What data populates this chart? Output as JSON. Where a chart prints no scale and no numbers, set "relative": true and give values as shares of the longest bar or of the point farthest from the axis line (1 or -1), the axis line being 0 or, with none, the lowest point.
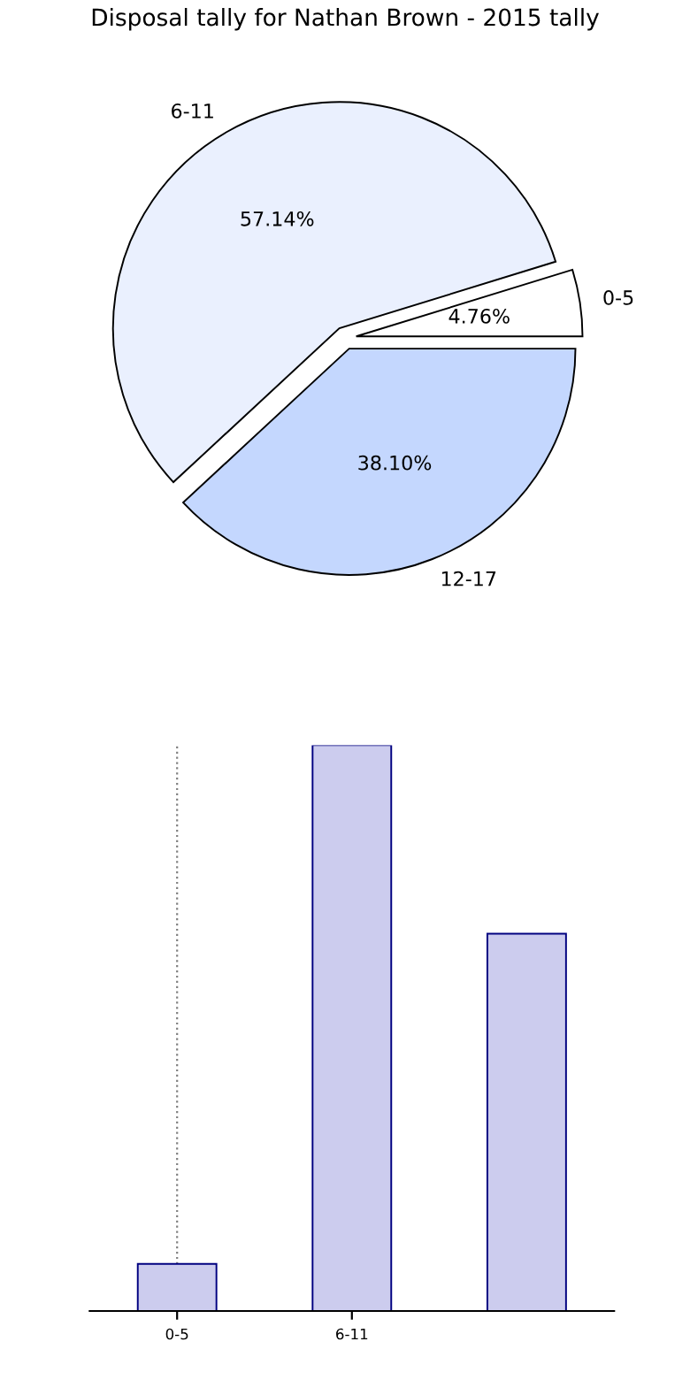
{
  "chart_data": [
    {
      "type": "pie",
      "title": "Disposal tally for Nathan Brown - 2015 tally",
      "categories": [
        "0-5",
        "6-11",
        "12-17"
      ],
      "values": [
        4.76,
        57.14,
        38.1
      ],
      "colors": [
        "#ffffff",
        "#eaf0fe",
        "#c4d7fe"
      ],
      "value_labels": [
        "4.76%",
        "57.14%",
        "38.10%"
      ],
      "legend": false
    },
    {
      "type": "bar",
      "categories": [
        "0-5",
        "6-11",
        null
      ],
      "values": [
        0.0833,
        1,
        0.6667
      ],
      "color": "#ccccee",
      "relative": true,
      "grid": "x",
      "legend": false
    }
  ]
}
